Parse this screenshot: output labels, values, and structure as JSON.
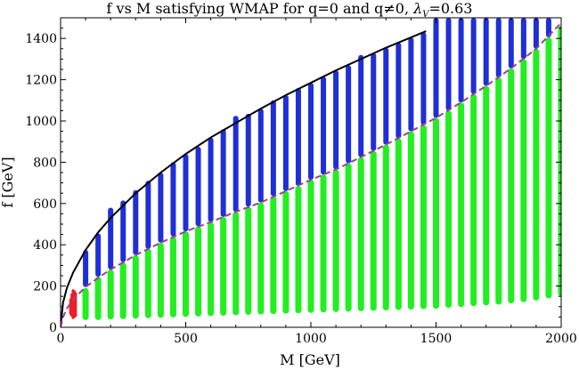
{
  "chart_data": {
    "type": "scatter",
    "title": "f vs M satisfying WMAP for q=0 and q≠0, λV=0.63",
    "title_prefix": "f vs M satisfying WMAP for q=0 and q≠0,",
    "title_symbol": "λ",
    "title_subscript": "V",
    "title_suffix": "=0.63",
    "xlabel": "M [GeV]",
    "ylabel": "f [GeV]",
    "xlim": [
      0,
      2000
    ],
    "ylim": [
      0,
      1500
    ],
    "x_ticks": [
      0,
      500,
      1000,
      1500,
      2000
    ],
    "y_ticks": [
      0,
      200,
      400,
      600,
      800,
      1000,
      1200,
      1400
    ],
    "x_tick_labels": [
      "0",
      "500",
      "1000",
      "1500",
      "2000"
    ],
    "y_tick_labels": [
      "0",
      "200",
      "400",
      "600",
      "800",
      "1000",
      "1200",
      "1400"
    ],
    "colors": {
      "blue_band": "#1f2fd6",
      "green_band": "#22ee22",
      "red_band": "#ee1c24",
      "upper_curve": "#000000",
      "lower_curve": "#a0408c"
    },
    "series": [
      {
        "name": "upper-boundary-curve",
        "style": "solid",
        "color": "#000000",
        "x": [
          0,
          10,
          25,
          50,
          100,
          150,
          200,
          300,
          400,
          500,
          600,
          700,
          800,
          900,
          1000,
          1100,
          1200,
          1300,
          1400,
          1460
        ],
        "y": [
          0,
          120,
          190,
          265,
          375,
          460,
          530,
          650,
          750,
          840,
          920,
          990,
          1060,
          1125,
          1185,
          1245,
          1300,
          1355,
          1405,
          1435
        ]
      },
      {
        "name": "lower-boundary-curve",
        "style": "dashed",
        "color": "#a0408c",
        "x": [
          0,
          10,
          25,
          50,
          100,
          150,
          200,
          300,
          400,
          500,
          600,
          700,
          800,
          900,
          1000,
          1100,
          1200,
          1300,
          1400,
          1500,
          1600,
          1700,
          1800,
          1900,
          2000
        ],
        "y": [
          0,
          50,
          90,
          135,
          195,
          240,
          280,
          350,
          410,
          465,
          510,
          560,
          605,
          660,
          715,
          765,
          825,
          885,
          950,
          1015,
          1090,
          1170,
          1255,
          1350,
          1475
        ]
      },
      {
        "name": "green-band-q0",
        "color": "#22ee22",
        "x": [
          100,
          150,
          200,
          250,
          300,
          350,
          400,
          450,
          500,
          550,
          600,
          650,
          700,
          750,
          800,
          850,
          900,
          950,
          1000,
          1050,
          1100,
          1150,
          1200,
          1250,
          1300,
          1350,
          1400,
          1450,
          1500,
          1550,
          1600,
          1650,
          1700,
          1750,
          1800,
          1850,
          1900,
          1950,
          2000
        ],
        "y_min": [
          35,
          35,
          38,
          40,
          42,
          44,
          46,
          48,
          50,
          52,
          54,
          56,
          58,
          60,
          62,
          64,
          66,
          68,
          70,
          72,
          74,
          76,
          78,
          80,
          82,
          84,
          86,
          88,
          90,
          94,
          98,
          102,
          106,
          110,
          116,
          122,
          130,
          140,
          150
        ],
        "y_max": [
          190,
          245,
          280,
          315,
          350,
          380,
          410,
          440,
          465,
          490,
          510,
          535,
          560,
          585,
          605,
          635,
          660,
          685,
          715,
          740,
          765,
          795,
          825,
          855,
          885,
          915,
          950,
          980,
          1015,
          1050,
          1090,
          1130,
          1170,
          1210,
          1255,
          1300,
          1350,
          1405,
          1460
        ]
      },
      {
        "name": "blue-band-q-nonzero",
        "color": "#1f2fd6",
        "x": [
          100,
          150,
          200,
          250,
          300,
          350,
          400,
          450,
          500,
          550,
          600,
          650,
          700,
          750,
          800,
          850,
          900,
          950,
          1000,
          1050,
          1100,
          1150,
          1200,
          1250,
          1300,
          1350,
          1400,
          1450,
          1500,
          1550,
          1600,
          1650,
          1700,
          1750,
          1800,
          1850,
          1900,
          1950
        ],
        "y_min": [
          195,
          245,
          280,
          315,
          350,
          380,
          410,
          440,
          465,
          490,
          510,
          535,
          560,
          585,
          605,
          635,
          660,
          685,
          715,
          740,
          765,
          795,
          825,
          855,
          885,
          915,
          950,
          980,
          1015,
          1050,
          1090,
          1130,
          1170,
          1210,
          1255,
          1300,
          1350,
          1405
        ],
        "y_max": [
          375,
          455,
          580,
          615,
          665,
          710,
          750,
          800,
          840,
          875,
          920,
          960,
          1025,
          1035,
          1060,
          1100,
          1125,
          1160,
          1185,
          1215,
          1245,
          1270,
          1320,
          1330,
          1355,
          1380,
          1405,
          1430,
          1500,
          1500,
          1500,
          1500,
          1500,
          1500,
          1500,
          1500,
          1500,
          1500
        ]
      },
      {
        "name": "red-band",
        "color": "#ee1c24",
        "x": [
          40,
          45,
          50,
          55,
          60
        ],
        "y_min": [
          60,
          50,
          40,
          45,
          50
        ],
        "y_max": [
          140,
          165,
          185,
          180,
          170
        ]
      }
    ]
  }
}
